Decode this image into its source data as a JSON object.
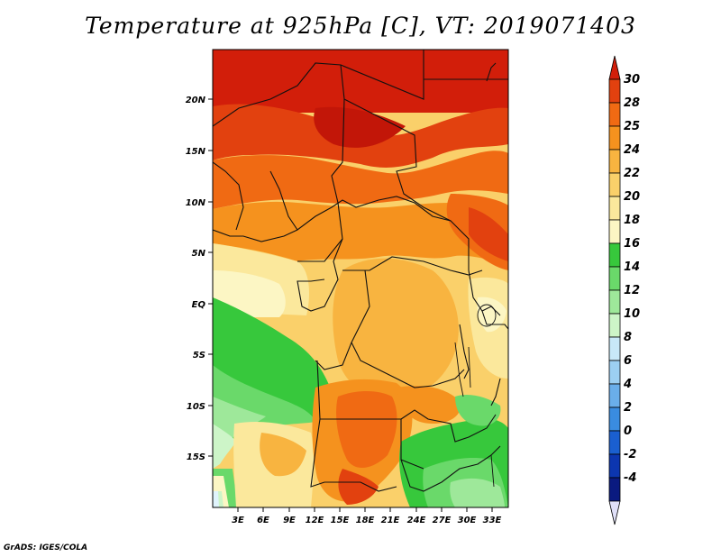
{
  "title": "Temperature at 925hPa [C], VT: 2019071403",
  "footer": "GrADS: IGES/COLA",
  "map": {
    "lat_labels": [
      "20N",
      "15N",
      "10N",
      "5N",
      "EQ",
      "5S",
      "10S",
      "15S"
    ],
    "lon_labels": [
      "3E",
      "6E",
      "9E",
      "12E",
      "15E",
      "18E",
      "21E",
      "24E",
      "27E",
      "30E",
      "33E"
    ]
  },
  "colorbar": {
    "levels": [
      "30",
      "28",
      "25",
      "24",
      "22",
      "20",
      "18",
      "16",
      "14",
      "12",
      "10",
      "8",
      "6",
      "4",
      "2",
      "0",
      "-2",
      "-4"
    ],
    "colors": [
      "#d21e0a",
      "#e2410f",
      "#f06a13",
      "#f5921e",
      "#f8b440",
      "#fad06a",
      "#fbe89c",
      "#fcf6c4",
      "#37c83c",
      "#6ad96a",
      "#9ee89a",
      "#cdf5c8",
      "#c8e8f8",
      "#9ccff2",
      "#6aaeea",
      "#3a8ce0",
      "#1a5fd0",
      "#0c36b0",
      "#0a1a80",
      "#e0e0f8"
    ]
  }
}
